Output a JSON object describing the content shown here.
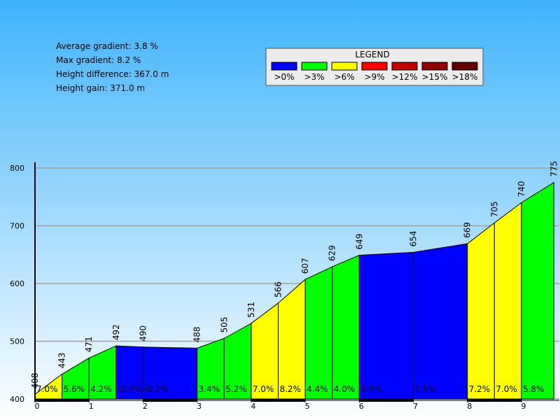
{
  "chart_data": {
    "type": "elevation-profile",
    "annotations": [
      "Average gradient: 3.8 %",
      "Max gradient: 8.2 %",
      "Height difference: 367.0 m",
      "Height gain: 371.0 m"
    ],
    "legend": {
      "title": "LEGEND",
      "items": [
        {
          "label": ">0%",
          "color": "#0000ff"
        },
        {
          "label": ">3%",
          "color": "#00ff00"
        },
        {
          "label": ">6%",
          "color": "#ffff00"
        },
        {
          "label": ">9%",
          "color": "#ff0000"
        },
        {
          "label": ">12%",
          "color": "#c00000"
        },
        {
          "label": ">15%",
          "color": "#900000"
        },
        {
          "label": ">18%",
          "color": "#600000"
        }
      ]
    },
    "x": [
      0,
      0.5,
      1.0,
      1.5,
      2.0,
      3.0,
      3.5,
      4.0,
      4.5,
      5.0,
      5.5,
      6.0,
      7.0,
      8.0,
      8.5,
      9.0,
      9.6
    ],
    "values": [
      408,
      443,
      471,
      492,
      490,
      488,
      505,
      531,
      566,
      607,
      629,
      649,
      654,
      669,
      705,
      740,
      775
    ],
    "gradients": [
      7.0,
      5.6,
      4.2,
      -0.4,
      -0.2,
      3.4,
      5.2,
      7.0,
      8.2,
      4.4,
      4.0,
      0.5,
      1.5,
      7.2,
      7.0,
      5.8
    ],
    "gradient_labels": [
      "7.0%",
      "5.6%",
      "4.2%",
      "-0.4%",
      "-0.2%",
      "3.4%",
      "5.2%",
      "7.0%",
      "8.2%",
      "4.4%",
      "4.0%",
      "0.5%",
      "1.5%",
      "7.2%",
      "7.0%",
      "5.8%"
    ],
    "colors": [
      "#ffff00",
      "#00ff00",
      "#00ff00",
      "#0000ff",
      "#0000ff",
      "#00ff00",
      "#00ff00",
      "#ffff00",
      "#ffff00",
      "#00ff00",
      "#00ff00",
      "#0000ff",
      "#0000ff",
      "#ffff00",
      "#ffff00",
      "#00ff00"
    ],
    "xlim": [
      0,
      9.7
    ],
    "ylim": [
      400,
      800
    ],
    "xticks": [
      0,
      1,
      2,
      3,
      4,
      5,
      6,
      7,
      8,
      9
    ],
    "yticks": [
      400,
      500,
      600,
      700,
      800
    ],
    "grid": true
  }
}
